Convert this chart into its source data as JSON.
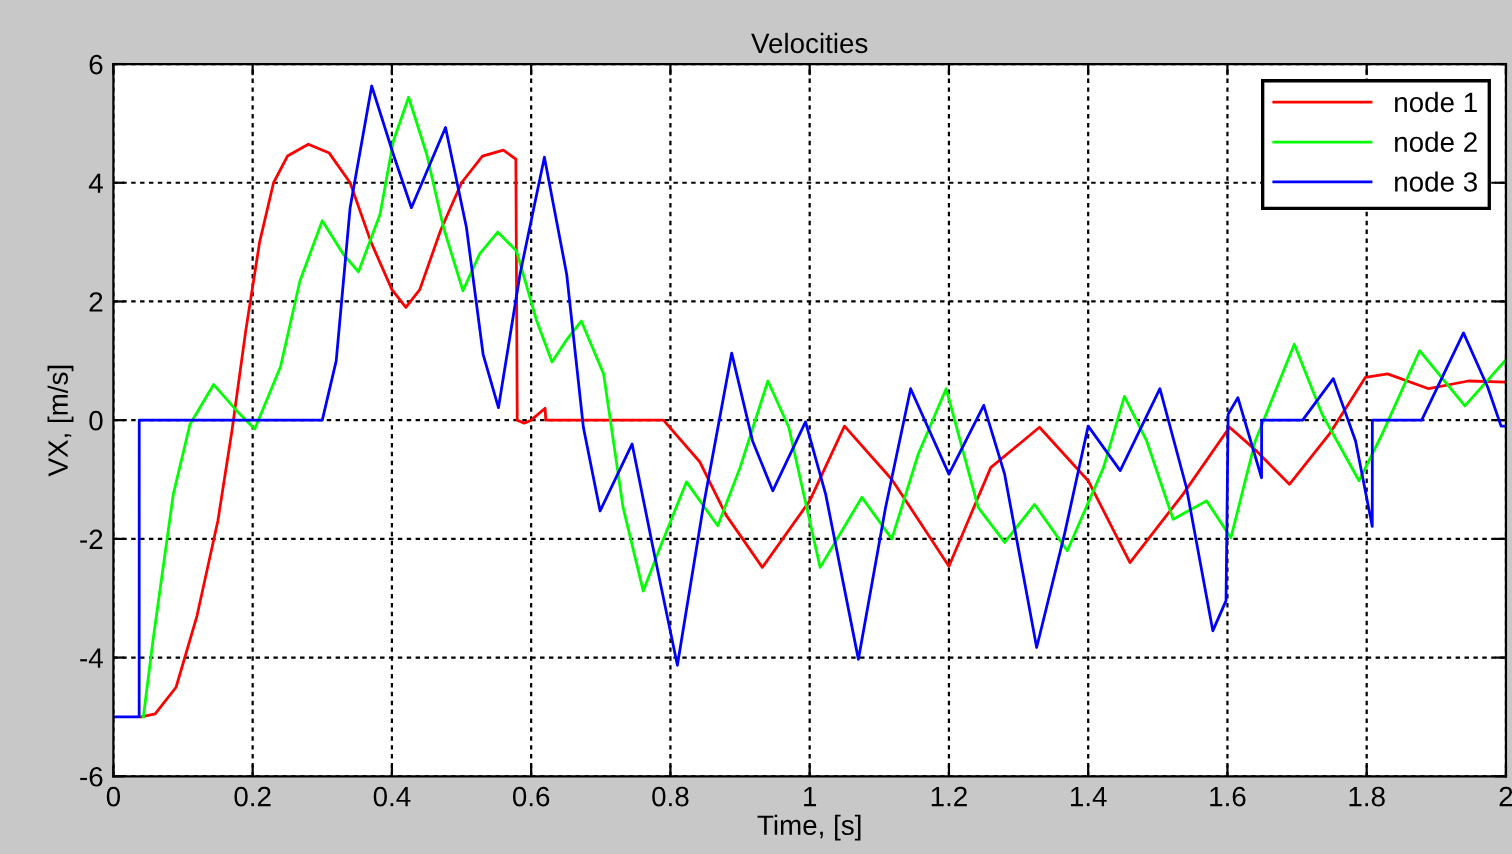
{
  "chart_data": {
    "type": "line",
    "title": "Velocities",
    "xlabel": "Time, [s]",
    "ylabel": "VX, [m/s]",
    "xlim": [
      0,
      2
    ],
    "ylim": [
      -6,
      6
    ],
    "xticks": [
      0,
      0.2,
      0.4,
      0.6,
      0.8,
      1,
      1.2,
      1.4,
      1.6,
      1.8,
      2
    ],
    "yticks": [
      -6,
      -4,
      -2,
      0,
      2,
      4,
      6
    ],
    "grid": true,
    "legend": "top right",
    "line_style": "solid",
    "marker": "none",
    "series": [
      {
        "name": "node 1",
        "color": "#ff0000",
        "x": [
          0.04,
          0.06,
          0.09,
          0.12,
          0.15,
          0.17,
          0.19,
          0.21,
          0.23,
          0.25,
          0.28,
          0.31,
          0.34,
          0.37,
          0.4,
          0.42,
          0.44,
          0.47,
          0.5,
          0.53,
          0.56,
          0.578,
          0.58,
          0.59,
          0.6,
          0.62,
          0.621,
          0.79,
          0.842,
          0.88,
          0.932,
          1.0,
          1.05,
          1.118,
          1.2,
          1.26,
          1.33,
          1.4,
          1.46,
          1.536,
          1.603,
          1.64,
          1.689,
          1.746,
          1.798,
          1.83,
          1.889,
          1.946,
          2.0
        ],
        "values": [
          -5,
          -4.95,
          -4.5,
          -3.3,
          -1.7,
          -0.2,
          1.5,
          3.0,
          4.0,
          4.45,
          4.65,
          4.5,
          4.0,
          3.0,
          2.2,
          1.9,
          2.2,
          3.2,
          4.0,
          4.45,
          4.55,
          4.4,
          0,
          -0.05,
          0,
          0.2,
          0,
          0,
          -0.7,
          -1.6,
          -2.48,
          -1.36,
          -0.1,
          -1.0,
          -2.46,
          -0.8,
          -0.12,
          -1.02,
          -2.4,
          -1.25,
          -0.12,
          -0.5,
          -1.08,
          -0.24,
          0.72,
          0.78,
          0.53,
          0.66,
          0.64
        ]
      },
      {
        "name": "node 2",
        "color": "#00ff00",
        "x": [
          0.043,
          0.057,
          0.086,
          0.11,
          0.144,
          0.177,
          0.203,
          0.24,
          0.268,
          0.3,
          0.33,
          0.352,
          0.383,
          0.402,
          0.424,
          0.45,
          0.474,
          0.502,
          0.526,
          0.552,
          0.579,
          0.608,
          0.63,
          0.65,
          0.672,
          0.704,
          0.732,
          0.761,
          0.785,
          0.823,
          0.868,
          0.9,
          0.94,
          0.97,
          1.015,
          1.075,
          1.118,
          1.156,
          1.196,
          1.242,
          1.28,
          1.323,
          1.37,
          1.422,
          1.452,
          1.484,
          1.522,
          1.57,
          1.605,
          1.64,
          1.696,
          1.736,
          1.789,
          1.822,
          1.876,
          1.941,
          2.0
        ],
        "values": [
          -5,
          -3.7,
          -1.25,
          -0.07,
          0.6,
          0.16,
          -0.15,
          0.9,
          2.35,
          3.36,
          2.8,
          2.5,
          3.47,
          4.7,
          5.44,
          4.48,
          3.25,
          2.18,
          2.8,
          3.17,
          2.85,
          1.67,
          0.98,
          1.34,
          1.67,
          0.78,
          -1.47,
          -2.88,
          -2.15,
          -1.04,
          -1.78,
          -0.8,
          0.66,
          -0.12,
          -2.48,
          -1.3,
          -2.0,
          -0.57,
          0.53,
          -1.47,
          -2.06,
          -1.42,
          -2.2,
          -0.8,
          0.4,
          -0.35,
          -1.67,
          -1.36,
          -1.98,
          -0.35,
          1.28,
          0.1,
          -1.02,
          -0.24,
          1.17,
          0.24,
          1.02
        ]
      },
      {
        "name": "node 3",
        "color": "#0000ff",
        "x": [
          0,
          0.037,
          0.0371,
          0.3,
          0.32,
          0.34,
          0.371,
          0.402,
          0.428,
          0.477,
          0.507,
          0.531,
          0.553,
          0.584,
          0.619,
          0.651,
          0.675,
          0.699,
          0.745,
          0.775,
          0.81,
          0.847,
          0.888,
          0.918,
          0.947,
          0.994,
          1.023,
          1.07,
          1.109,
          1.145,
          1.2,
          1.25,
          1.28,
          1.326,
          1.366,
          1.4,
          1.446,
          1.503,
          1.541,
          1.579,
          1.598,
          1.601,
          1.615,
          1.649,
          1.6491,
          1.708,
          1.752,
          1.784,
          1.808,
          1.8081,
          1.879,
          1.939,
          1.974,
          1.993,
          2.0
        ],
        "values": [
          -5,
          -5,
          0,
          0,
          1.0,
          3.58,
          5.63,
          4.48,
          3.58,
          4.93,
          3.25,
          1.11,
          0.21,
          2.46,
          4.43,
          2.46,
          -0.12,
          -1.53,
          -0.4,
          -2.15,
          -4.13,
          -1.47,
          1.13,
          -0.35,
          -1.19,
          -0.03,
          -1.25,
          -4.03,
          -1.47,
          0.53,
          -0.91,
          0.25,
          -0.91,
          -3.83,
          -1.92,
          -0.1,
          -0.85,
          0.53,
          -1.13,
          -3.55,
          -3.04,
          0.1,
          0.38,
          -0.97,
          0,
          0,
          0.7,
          -0.35,
          -1.79,
          0,
          0,
          1.47,
          0.55,
          -0.1,
          -0.1
        ]
      }
    ]
  }
}
